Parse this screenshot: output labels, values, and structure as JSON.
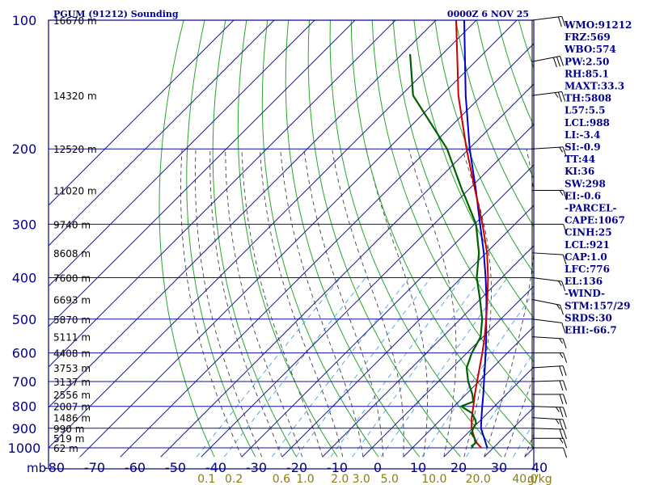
{
  "chart_data": {
    "type": "skew-t",
    "title": "PGUM (91212) Sounding",
    "time": "0000Z  6 NOV 25",
    "ylabel_unit": "mb",
    "mix_unit": "g/kg",
    "pressure_ticks": [
      100,
      200,
      300,
      400,
      500,
      600,
      700,
      800,
      900,
      1000
    ],
    "temp_ticks": [
      -80,
      -70,
      -60,
      -50,
      -40,
      -30,
      -20,
      -10,
      0,
      10,
      20,
      30,
      40
    ],
    "mixing_ratio_labels": [
      "0.1",
      "0.2",
      "0.6",
      "1.0",
      "2.0",
      "3.0",
      "5.0",
      "10.0",
      "20.0",
      "40.0"
    ],
    "height_labels": [
      {
        "p": 100,
        "text": "16670 m"
      },
      {
        "p": 150,
        "text": "14320 m"
      },
      {
        "p": 200,
        "text": "12520 m"
      },
      {
        "p": 250,
        "text": "11020 m"
      },
      {
        "p": 300,
        "text": "9740 m"
      },
      {
        "p": 350,
        "text": "8608 m"
      },
      {
        "p": 400,
        "text": "7600 m"
      },
      {
        "p": 450,
        "text": "6693 m"
      },
      {
        "p": 500,
        "text": "5870 m"
      },
      {
        "p": 550,
        "text": "5111 m"
      },
      {
        "p": 600,
        "text": "4408 m"
      },
      {
        "p": 650,
        "text": "3753 m"
      },
      {
        "p": 700,
        "text": "3137 m"
      },
      {
        "p": 750,
        "text": "2556 m"
      },
      {
        "p": 800,
        "text": "2007 m"
      },
      {
        "p": 850,
        "text": "1486 m"
      },
      {
        "p": 900,
        "text": "990 m"
      },
      {
        "p": 950,
        "text": "519 m"
      },
      {
        "p": 1000,
        "text": "62 m"
      }
    ],
    "stats": [
      "WMO:91212",
      "FRZ:569",
      "WBO:574",
      "PW:2.50",
      "RH:85.1",
      "MAXT:33.3",
      "TH:5808",
      "L57:5.5",
      "LCL:988",
      "LI:-3.4",
      "SI:-0.9",
      "TT:44",
      "KI:36",
      "SW:298",
      "EI:-0.6",
      "-PARCEL-",
      "CAPE:1067",
      "CINH:25",
      "LCL:921",
      "CAP:1.0",
      "LFC:776",
      "EL:136",
      "-WIND-",
      "STM:157/29",
      "SRDS:30",
      "EHI:-66.7"
    ],
    "temperature": [
      [
        1000,
        27.0
      ],
      [
        975,
        24.8
      ],
      [
        950,
        23.0
      ],
      [
        925,
        21.4
      ],
      [
        900,
        19.8
      ],
      [
        850,
        17.2
      ],
      [
        800,
        14.8
      ],
      [
        750,
        12.2
      ],
      [
        700,
        9.6
      ],
      [
        650,
        6.8
      ],
      [
        600,
        3.8
      ],
      [
        550,
        0.4
      ],
      [
        500,
        -3.6
      ],
      [
        450,
        -8.2
      ],
      [
        400,
        -13.4
      ],
      [
        350,
        -19.8
      ],
      [
        300,
        -28.0
      ],
      [
        250,
        -38.2
      ],
      [
        200,
        -50.6
      ],
      [
        150,
        -65.8
      ],
      [
        100,
        -85.0
      ]
    ],
    "dewpoint": [
      [
        1000,
        25.0
      ],
      [
        990,
        24.2
      ],
      [
        975,
        24.4
      ],
      [
        950,
        23.0
      ],
      [
        925,
        21.0
      ],
      [
        900,
        20.2
      ],
      [
        875,
        19.6
      ],
      [
        860,
        18.6
      ],
      [
        850,
        17.8
      ],
      [
        830,
        16.2
      ],
      [
        800,
        11.8
      ],
      [
        780,
        13.6
      ],
      [
        750,
        11.6
      ],
      [
        700,
        7.4
      ],
      [
        650,
        3.6
      ],
      [
        600,
        1.2
      ],
      [
        550,
        -0.6
      ],
      [
        500,
        -4.6
      ],
      [
        450,
        -10.0
      ],
      [
        400,
        -16.2
      ],
      [
        350,
        -21.8
      ],
      [
        300,
        -29.6
      ],
      [
        260,
        -38.8
      ],
      [
        250,
        -41.4
      ],
      [
        200,
        -55.4
      ],
      [
        150,
        -77.0
      ],
      [
        120,
        -88.0
      ]
    ],
    "parcel": [
      [
        1000,
        28.5
      ],
      [
        950,
        25.4
      ],
      [
        900,
        22.1
      ],
      [
        850,
        19.6
      ],
      [
        800,
        17.0
      ],
      [
        750,
        14.3
      ],
      [
        700,
        11.3
      ],
      [
        650,
        8.1
      ],
      [
        600,
        4.6
      ],
      [
        550,
        0.8
      ],
      [
        500,
        -3.6
      ],
      [
        450,
        -8.4
      ],
      [
        400,
        -14.0
      ],
      [
        350,
        -20.6
      ],
      [
        300,
        -28.6
      ],
      [
        250,
        -38.0
      ],
      [
        200,
        -49.8
      ],
      [
        150,
        -64.0
      ],
      [
        100,
        -83.0
      ]
    ],
    "winds": [
      [
        1000,
        90,
        10
      ],
      [
        950,
        90,
        15
      ],
      [
        900,
        95,
        20
      ],
      [
        850,
        100,
        25
      ],
      [
        800,
        95,
        25
      ],
      [
        750,
        90,
        20
      ],
      [
        700,
        85,
        20
      ],
      [
        650,
        80,
        20
      ],
      [
        600,
        90,
        15
      ],
      [
        550,
        100,
        15
      ],
      [
        500,
        110,
        10
      ],
      [
        450,
        120,
        15
      ],
      [
        400,
        110,
        15
      ],
      [
        350,
        100,
        10
      ],
      [
        300,
        90,
        10
      ],
      [
        250,
        90,
        15
      ],
      [
        200,
        80,
        15
      ],
      [
        150,
        70,
        25
      ],
      [
        125,
        60,
        30
      ],
      [
        100,
        70,
        20
      ]
    ],
    "colors": {
      "frame": "#00008b",
      "isobar": "#1010a0",
      "isotherm": "#1a1aa8",
      "dry_adiabat": "#2aa52a",
      "moist_adiabat": "#40404a",
      "mixing_ratio": "#4aa0e8",
      "temperature": "#cc0000",
      "dewpoint": "#006000",
      "parcel": "#0000cc",
      "mix_label": "#8b7d0a",
      "barb": "#000000"
    }
  }
}
